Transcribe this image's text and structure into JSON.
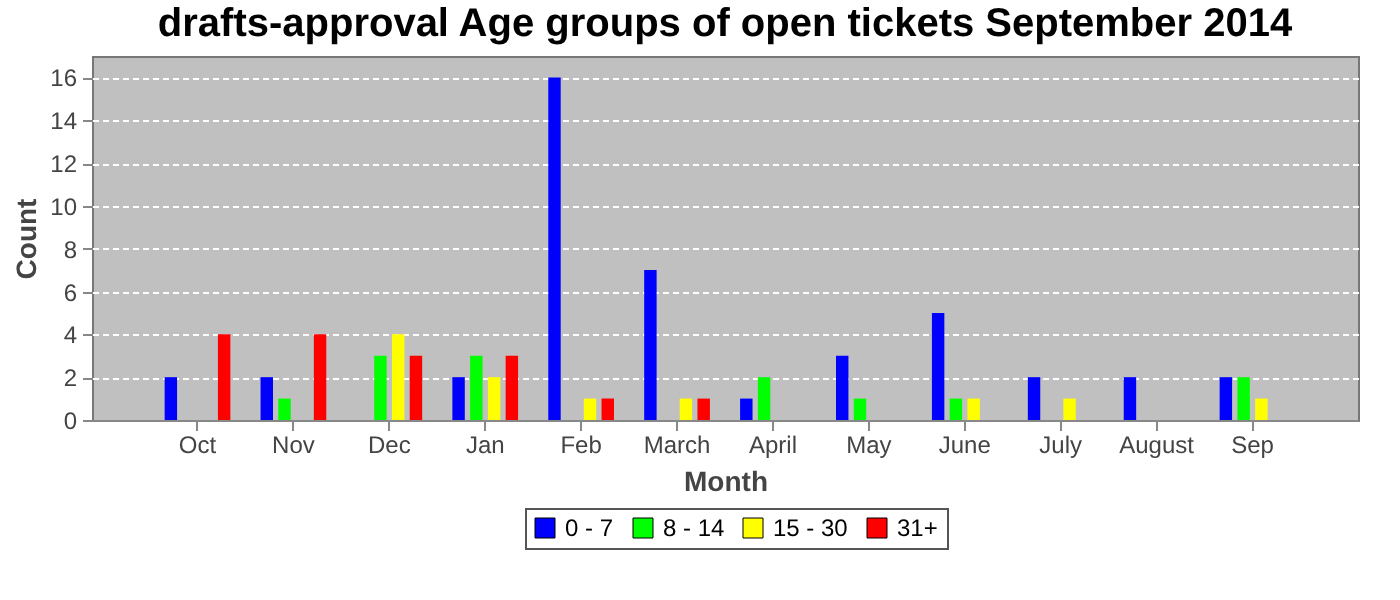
{
  "chart_data": {
    "type": "bar",
    "title": "drafts-approval Age groups of open tickets September 2014",
    "xlabel": "Month",
    "ylabel": "Count",
    "categories": [
      "Oct",
      "Nov",
      "Dec",
      "Jan",
      "Feb",
      "March",
      "April",
      "May",
      "June",
      "July",
      "August",
      "Sep"
    ],
    "series": [
      {
        "name": "0 - 7",
        "color": "#0000ff",
        "values": [
          2,
          2,
          0,
          2,
          16,
          7,
          1,
          3,
          5,
          2,
          2,
          2
        ]
      },
      {
        "name": "8 - 14",
        "color": "#00ff00",
        "values": [
          0,
          1,
          3,
          3,
          0,
          0,
          2,
          1,
          1,
          0,
          0,
          2
        ]
      },
      {
        "name": "15 - 30",
        "color": "#ffff00",
        "values": [
          0,
          0,
          4,
          2,
          1,
          1,
          0,
          0,
          1,
          1,
          0,
          1
        ]
      },
      {
        "name": "31+",
        "color": "#ff0000",
        "values": [
          4,
          4,
          3,
          3,
          1,
          1,
          0,
          0,
          0,
          0,
          0,
          0
        ]
      }
    ],
    "ylim": [
      0,
      17
    ],
    "yticks": [
      0,
      2,
      4,
      6,
      8,
      10,
      12,
      14,
      16
    ],
    "grid": "y",
    "legend": "bottom"
  }
}
